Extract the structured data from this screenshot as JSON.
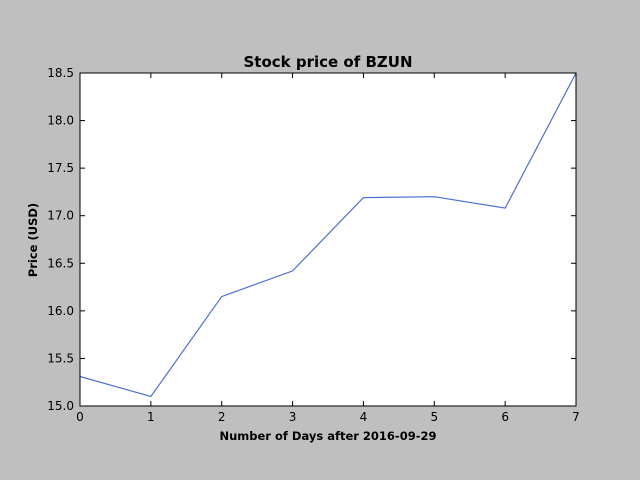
{
  "chart_data": {
    "type": "line",
    "title": "Stock price of BZUN",
    "xlabel": "Number of Days after 2016-09-29",
    "ylabel": "Price (USD)",
    "xlim": [
      0,
      7
    ],
    "ylim": [
      15.0,
      18.5
    ],
    "xticks": [
      "0",
      "1",
      "2",
      "3",
      "4",
      "5",
      "6",
      "7"
    ],
    "yticks": [
      "15.0",
      "15.5",
      "16.0",
      "16.5",
      "17.0",
      "17.5",
      "18.0",
      "18.5"
    ],
    "grid": false,
    "series": [
      {
        "x": [
          0,
          1,
          2,
          3,
          4,
          5,
          6,
          7
        ],
        "values": [
          15.31,
          15.1,
          16.15,
          16.42,
          17.19,
          17.2,
          17.08,
          18.5
        ]
      }
    ],
    "colors": {
      "line": "#4a6fd0",
      "figure_bg": "#bfbfbf",
      "plot_bg": "#ffffff"
    }
  }
}
